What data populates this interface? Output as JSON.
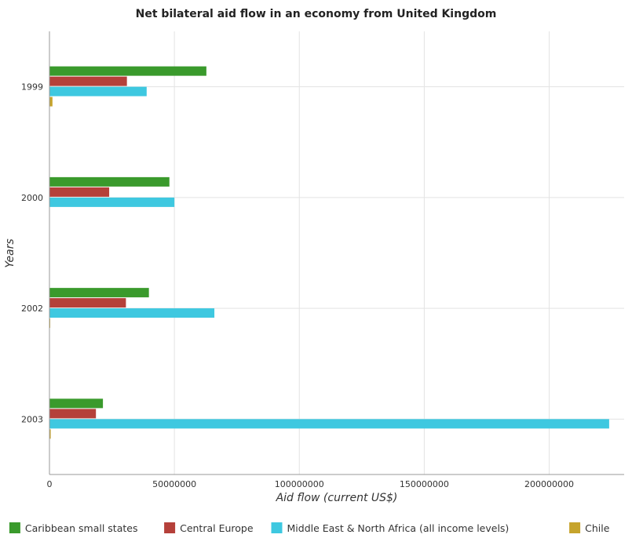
{
  "chart_data": {
    "type": "bar",
    "orientation": "horizontal",
    "title": "Net bilateral aid flow in an economy from United Kingdom",
    "xlabel": "Aid flow (current US$)",
    "ylabel": "Years",
    "categories": [
      "1999",
      "2000",
      "2002",
      "2003"
    ],
    "xlim": [
      0,
      230000000
    ],
    "xticks": [
      0,
      50000000,
      100000000,
      150000000,
      200000000
    ],
    "xtick_labels": [
      "0",
      "50000000",
      "100000000",
      "150000000",
      "200000000"
    ],
    "grid": true,
    "legend_position": "bottom",
    "series": [
      {
        "name": "Caribbean small states",
        "color": "#3a9a2c",
        "values": [
          62800000,
          48000000,
          39800000,
          21400000
        ]
      },
      {
        "name": "Central Europe",
        "color": "#b5403a",
        "values": [
          31000000,
          23900000,
          30600000,
          18600000
        ]
      },
      {
        "name": "Middle East & North Africa (all income levels)",
        "color": "#3ec8e0",
        "values": [
          38900000,
          50000000,
          66000000,
          224000000
        ]
      },
      {
        "name": "Chile",
        "color": "#c6a42c",
        "values": [
          1200000,
          150000,
          300000,
          500000
        ]
      }
    ]
  }
}
